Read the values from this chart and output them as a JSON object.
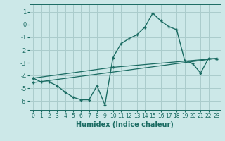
{
  "xlabel": "Humidex (Indice chaleur)",
  "bg_color": "#cce8e8",
  "grid_color": "#aacccc",
  "line_color": "#1a6b62",
  "xlim": [
    -0.5,
    23.5
  ],
  "ylim": [
    -6.7,
    1.6
  ],
  "yticks": [
    1,
    0,
    -1,
    -2,
    -3,
    -4,
    -5,
    -6
  ],
  "xticks": [
    0,
    1,
    2,
    3,
    4,
    5,
    6,
    7,
    8,
    9,
    10,
    11,
    12,
    13,
    14,
    15,
    16,
    17,
    18,
    19,
    20,
    21,
    22,
    23
  ],
  "line1_x": [
    0,
    1,
    2,
    3,
    4,
    5,
    6,
    7,
    8,
    9,
    10,
    11,
    12,
    13,
    14,
    15,
    16,
    17,
    18,
    19,
    20,
    21,
    22,
    23
  ],
  "line1_y": [
    -4.2,
    -4.5,
    -4.5,
    -4.8,
    -5.3,
    -5.7,
    -5.9,
    -5.9,
    -4.8,
    -6.3,
    -2.6,
    -1.5,
    -1.1,
    -0.8,
    -0.2,
    0.9,
    0.3,
    -0.15,
    -0.4,
    -2.8,
    -3.05,
    -3.8,
    -2.65,
    -2.7
  ],
  "line2_x": [
    0,
    23
  ],
  "line2_y": [
    -4.55,
    -2.65
  ],
  "line3_x": [
    0,
    10,
    23
  ],
  "line3_y": [
    -4.2,
    -3.35,
    -2.65
  ]
}
